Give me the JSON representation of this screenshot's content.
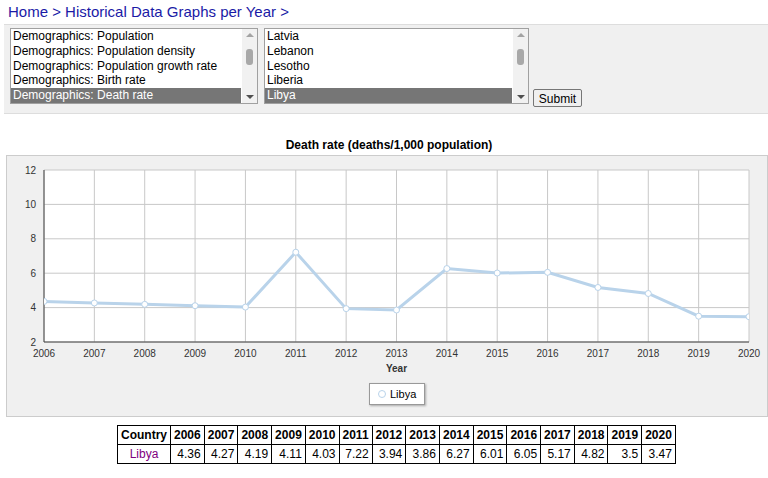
{
  "page": {
    "breadcrumb": "Home > Historical Data Graphs per Year >",
    "indicators": [
      "Demographics: Population",
      "Demographics: Population density",
      "Demographics: Population growth rate",
      "Demographics: Birth rate",
      "Demographics: Death rate"
    ],
    "selected_indicator": 4,
    "countries": [
      "Latvia",
      "Lebanon",
      "Lesotho",
      "Liberia",
      "Libya"
    ],
    "selected_country": 4,
    "button": "Submit",
    "table_first_header": "Country"
  },
  "chart_data": {
    "type": "line",
    "title": "Death rate (deaths/1,000 population)",
    "x_label": "Year",
    "x": [
      2006,
      2007,
      2008,
      2009,
      2010,
      2011,
      2012,
      2013,
      2014,
      2015,
      2016,
      2017,
      2018,
      2019,
      2020
    ],
    "series": [
      {
        "name": "Libya",
        "color": "#b9d3ea",
        "values": [
          4.36,
          4.27,
          4.19,
          4.11,
          4.03,
          7.22,
          3.94,
          3.86,
          6.27,
          6.01,
          6.05,
          5.17,
          4.82,
          3.5,
          3.47
        ]
      }
    ],
    "xlim": [
      2006,
      2020
    ],
    "xticks": [
      2006,
      2007,
      2008,
      2009,
      2010,
      2011,
      2012,
      2013,
      2014,
      2015,
      2016,
      2017,
      2018,
      2019,
      2020
    ],
    "ylim": [
      2,
      12
    ],
    "yticks": [
      2,
      4,
      6,
      8,
      10,
      12
    ],
    "grid": true,
    "legend": "bottom",
    "marker": "circle"
  }
}
